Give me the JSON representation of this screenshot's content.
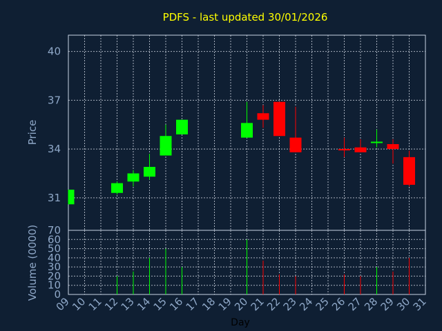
{
  "chart_data": {
    "type": "candlestick",
    "title": "PDFS - last updated 30/01/2026",
    "xlabel": "Day",
    "price_panel": {
      "ylabel": "Price",
      "ylim": [
        29,
        41
      ],
      "yticks": [
        "31",
        "34",
        "37",
        "40"
      ],
      "grid": true
    },
    "volume_panel": {
      "ylabel": "Volume (0000)",
      "ylim": [
        0,
        70
      ],
      "yticks": [
        "0",
        "10",
        "20",
        "30",
        "40",
        "50",
        "60",
        "70"
      ],
      "grid": true
    },
    "x_ticks": [
      "09",
      "10",
      "11",
      "12",
      "13",
      "14",
      "15",
      "16",
      "17",
      "18",
      "19",
      "20",
      "21",
      "22",
      "23",
      "24",
      "25",
      "26",
      "27",
      "28",
      "29",
      "30",
      "31"
    ],
    "up_color": "#00ff00",
    "down_color": "#ff0000",
    "candles": [
      {
        "day": "09",
        "open": 30.6,
        "close": 31.5,
        "high": 31.5,
        "low": 30.6,
        "volume": 0
      },
      {
        "day": "12",
        "open": 31.3,
        "close": 31.9,
        "high": 32.0,
        "low": 31.2,
        "volume": 20
      },
      {
        "day": "13",
        "open": 32.0,
        "close": 32.5,
        "high": 32.7,
        "low": 31.7,
        "volume": 25
      },
      {
        "day": "14",
        "open": 32.3,
        "close": 32.9,
        "high": 33.7,
        "low": 32.1,
        "volume": 40
      },
      {
        "day": "15",
        "open": 33.6,
        "close": 34.8,
        "high": 35.5,
        "low": 33.6,
        "volume": 50
      },
      {
        "day": "16",
        "open": 34.9,
        "close": 35.8,
        "high": 35.8,
        "low": 34.9,
        "volume": 30
      },
      {
        "day": "20",
        "open": 34.7,
        "close": 35.6,
        "high": 36.9,
        "low": 34.7,
        "volume": 60
      },
      {
        "day": "21",
        "open": 36.2,
        "close": 35.8,
        "high": 36.7,
        "low": 35.3,
        "volume": 37
      },
      {
        "day": "22",
        "open": 36.9,
        "close": 34.8,
        "high": 36.9,
        "low": 34.8,
        "volume": 22
      },
      {
        "day": "23",
        "open": 34.7,
        "close": 33.8,
        "high": 36.6,
        "low": 33.8,
        "volume": 20
      },
      {
        "day": "26",
        "open": 34.0,
        "close": 33.98,
        "high": 34.7,
        "low": 33.5,
        "volume": 22
      },
      {
        "day": "27",
        "open": 34.1,
        "close": 33.8,
        "high": 34.6,
        "low": 33.8,
        "volume": 20
      },
      {
        "day": "28",
        "open": 34.4,
        "close": 34.45,
        "high": 35.2,
        "low": 34.1,
        "volume": 30
      },
      {
        "day": "29",
        "open": 34.3,
        "close": 34.0,
        "high": 34.6,
        "low": 33.1,
        "volume": 25
      },
      {
        "day": "30",
        "open": 33.5,
        "close": 31.8,
        "high": 33.9,
        "low": 31.7,
        "volume": 40
      }
    ]
  }
}
